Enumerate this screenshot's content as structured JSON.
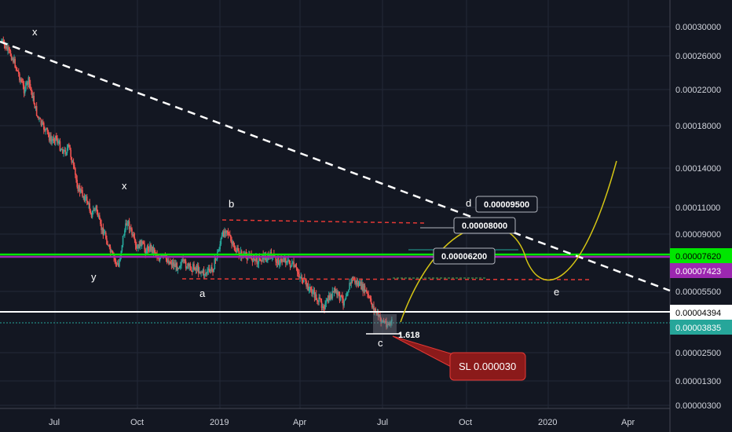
{
  "chart_data": {
    "type": "candlestick",
    "y_ticks": [
      "0.00030000",
      "0.00026000",
      "0.00022000",
      "0.00018000",
      "0.00014000",
      "0.00011000",
      "0.00009000",
      "0.00005500",
      "0.00002500",
      "0.00001300",
      "0.00000300"
    ],
    "x_ticks": [
      "Jul",
      "Oct",
      "2019",
      "Apr",
      "Jul",
      "Oct",
      "2020",
      "Apr"
    ],
    "price_badges": [
      {
        "value": "0.00007620",
        "color": "#00e600"
      },
      {
        "value": "0.00007423",
        "color": "#9c27b0"
      },
      {
        "value": "0.00004394",
        "color": "#ffffff"
      },
      {
        "value": "0.00003835",
        "color": "#26a69a"
      }
    ],
    "wave_labels": [
      "x",
      "y",
      "x",
      "b",
      "a",
      "c",
      "d",
      "e"
    ],
    "target_boxes": [
      "0.00009500",
      "0.00008000",
      "0.00006200"
    ],
    "fib_label": "1.618",
    "stop_loss_label": "SL 0.000030",
    "close_series": [
      0.00028,
      0.00027,
      0.000262,
      0.00025,
      0.000235,
      0.00022,
      0.00023,
      0.00021,
      0.00019,
      0.00018,
      0.000175,
      0.000165,
      0.00017,
      0.00016,
      0.000155,
      0.00016,
      0.00014,
      0.000125,
      0.00012,
      0.000115,
      0.000105,
      0.00011,
      9.5e-05,
      9e-05,
      8e-05,
      7.5e-05,
      7e-05,
      8.8e-05,
      0.0001,
      9e-05,
      8e-05,
      8.5e-05,
      8e-05,
      8.2e-05,
      8e-05,
      7.5e-05,
      7.6e-05,
      7.4e-05,
      7.2e-05,
      7e-05,
      7.3e-05,
      7.1e-05,
      6.9e-05,
      7e-05,
      6.8e-05,
      6.6e-05,
      6.7e-05,
      6.9e-05,
      7.8e-05,
      8.8e-05,
      9.5e-05,
      8.5e-05,
      8e-05,
      7.8e-05,
      7.6e-05,
      7.7e-05,
      7.5e-05,
      7.4e-05,
      7.6e-05,
      7.5e-05,
      7.7e-05,
      7.4e-05,
      7.3e-05,
      7.5e-05,
      7.2e-05,
      7e-05,
      6.6e-05,
      6.2e-05,
      5.8e-05,
      5.5e-05,
      5.2e-05,
      4.9e-05,
      4.8e-05,
      5.2e-05,
      5.5e-05,
      5.3e-05,
      5e-05,
      5.6e-05,
      6.3e-05,
      6e-05,
      5.8e-05,
      5.5e-05,
      5e-05,
      4.6e-05,
      4.2e-05,
      4e-05,
      3.9e-05,
      4e-05
    ]
  }
}
